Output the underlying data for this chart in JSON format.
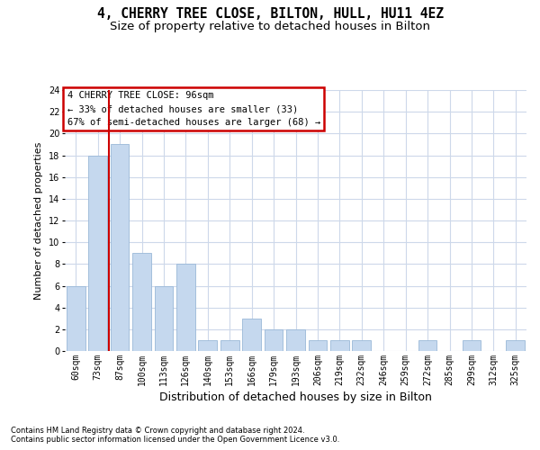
{
  "title1": "4, CHERRY TREE CLOSE, BILTON, HULL, HU11 4EZ",
  "title2": "Size of property relative to detached houses in Bilton",
  "xlabel": "Distribution of detached houses by size in Bilton",
  "ylabel": "Number of detached properties",
  "categories": [
    "60sqm",
    "73sqm",
    "87sqm",
    "100sqm",
    "113sqm",
    "126sqm",
    "140sqm",
    "153sqm",
    "166sqm",
    "179sqm",
    "193sqm",
    "206sqm",
    "219sqm",
    "232sqm",
    "246sqm",
    "259sqm",
    "272sqm",
    "285sqm",
    "299sqm",
    "312sqm",
    "325sqm"
  ],
  "values": [
    6,
    18,
    19,
    9,
    6,
    8,
    1,
    1,
    3,
    2,
    2,
    1,
    1,
    1,
    0,
    0,
    1,
    0,
    1,
    0,
    1
  ],
  "bar_color": "#c5d8ee",
  "bar_edge_color": "#9ab8d8",
  "vline_position": 1.5,
  "vline_color": "#cc0000",
  "ylim_max": 24,
  "yticks": [
    0,
    2,
    4,
    6,
    8,
    10,
    12,
    14,
    16,
    18,
    20,
    22,
    24
  ],
  "annotation_text": "4 CHERRY TREE CLOSE: 96sqm\n← 33% of detached houses are smaller (33)\n67% of semi-detached houses are larger (68) →",
  "annotation_box_color": "#ffffff",
  "annotation_box_edge": "#cc0000",
  "footer1": "Contains HM Land Registry data © Crown copyright and database right 2024.",
  "footer2": "Contains public sector information licensed under the Open Government Licence v3.0.",
  "bg_color": "#ffffff",
  "grid_color": "#cdd8ea",
  "title1_fontsize": 10.5,
  "title2_fontsize": 9.5,
  "ylabel_fontsize": 8,
  "xlabel_fontsize": 9,
  "tick_fontsize": 7,
  "annot_fontsize": 7.5,
  "footer_fontsize": 6
}
